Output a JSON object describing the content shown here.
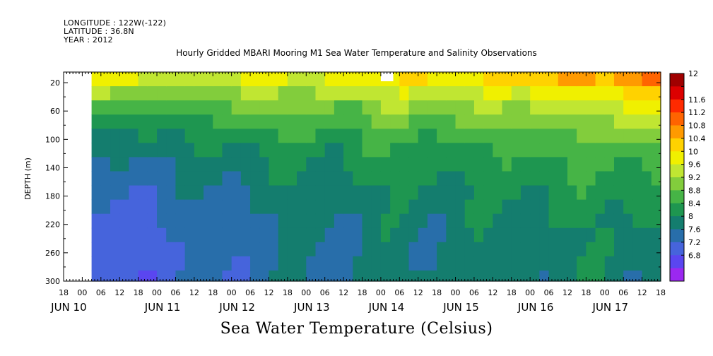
{
  "header": {
    "longitude": "LONGITUDE : 122W(-122)",
    "latitude": "LATITUDE : 36.8N",
    "year": "YEAR : 2012"
  },
  "chart_data": {
    "type": "heatmap",
    "title": "Hourly Gridded MBARI Mooring M1 Sea Water Temperature and Salinity Observations",
    "xlabel": "Sea Water Temperature (Celsius)",
    "ylabel": "DEPTH (m)",
    "y_ticks": [
      20,
      60,
      100,
      140,
      180,
      220,
      260,
      300
    ],
    "y_range": [
      5,
      300
    ],
    "y_inverted": true,
    "x_hour_ticks": [
      "18",
      "00",
      "06",
      "12",
      "18",
      "00",
      "06",
      "12",
      "18",
      "00",
      "06",
      "12",
      "18",
      "00",
      "06",
      "12",
      "18",
      "00",
      "06",
      "12",
      "18",
      "00",
      "06",
      "12",
      "18",
      "00",
      "06",
      "12",
      "18",
      "00",
      "06",
      "12",
      "18"
    ],
    "x_day_labels": [
      "JUN 10",
      "JUN 11",
      "JUN 12",
      "JUN 13",
      "JUN 14",
      "JUN 15",
      "JUN 16",
      "JUN 17"
    ],
    "x_range_hours": [
      -6,
      186
    ],
    "data_start_hour": 3,
    "colorbar_levels": [
      "12",
      "11.6",
      "11.2",
      "10.8",
      "10.4",
      "10",
      "9.6",
      "9.2",
      "8.8",
      "8.4",
      "8",
      "7.6",
      "7.2",
      "6.8"
    ],
    "colorbar_colors": [
      "#a00000",
      "#dc0000",
      "#ff2a00",
      "#ff6400",
      "#ff9a00",
      "#ffd200",
      "#f0f000",
      "#c0e632",
      "#82cd3c",
      "#46b446",
      "#1e9650",
      "#147d6e",
      "#286eaa",
      "#4664dc",
      "#5a46f0",
      "#9b28f0"
    ],
    "depth_grid_m": [
      5,
      25,
      45,
      65,
      85,
      105,
      125,
      145,
      165,
      185,
      205,
      225,
      245,
      265,
      285,
      300
    ],
    "surface_mean_c": [
      10.3,
      10.3,
      10.2,
      10.2,
      10.3,
      10.4,
      10.5,
      10.6,
      10.7,
      11.0,
      11.3,
      11.6
    ],
    "bottom_mean_c": [
      7.0,
      7.2,
      7.5,
      7.7,
      7.8,
      7.9,
      7.9,
      8.0,
      8.0,
      8.1,
      8.1,
      8.1
    ],
    "missing_block": {
      "hour_start": 96,
      "hour_end": 100,
      "depth_start": 5,
      "depth_end": 18
    }
  }
}
